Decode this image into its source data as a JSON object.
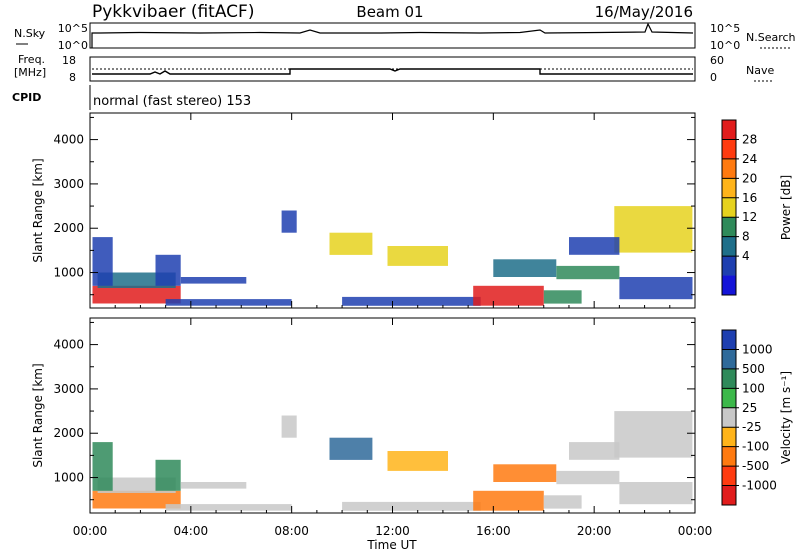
{
  "header": {
    "title": "Pykkvibaer (fitACF)",
    "beam": "Beam 01",
    "date": "16/May/2016"
  },
  "panels": {
    "nsky": {
      "left_label": "N.Sky",
      "top_tick": "10^5",
      "bottom_tick": "10^0",
      "right_label": "N.Search",
      "right_top_tick": "10^5",
      "right_bottom_tick": "10^0"
    },
    "freq": {
      "left_label_1": "Freq.",
      "left_label_2": "[MHz]",
      "top_tick": "18",
      "bottom_tick": "8",
      "right_label": "Nave",
      "right_top_tick": "60",
      "right_bottom_tick": "0"
    },
    "cpid": {
      "label": "CPID",
      "text": "normal (fast stereo) 153"
    }
  },
  "colorbars": {
    "power": {
      "label": "Power [dB]",
      "ticks": [
        "28",
        "24",
        "20",
        "16",
        "12",
        "8",
        "4"
      ],
      "colors": [
        "#e11c1c",
        "#ff3b10",
        "#ff7a10",
        "#ffb41a",
        "#e6d21e",
        "#2f8a5a",
        "#1f6f8a",
        "#1e3fb0",
        "#1414d8"
      ]
    },
    "velocity": {
      "label": "Velocity [m s⁻¹]",
      "ticks": [
        "1000",
        "500",
        "100",
        "25",
        "-25",
        "-100",
        "-500",
        "-1000"
      ],
      "colors": [
        "#1e3fb0",
        "#2f6a9a",
        "#2f8a5a",
        "#3cb84a",
        "#c8c8c8",
        "#ffb41a",
        "#ff7a10",
        "#ff3b10",
        "#e11c1c"
      ]
    }
  },
  "chart_data": [
    {
      "type": "heatmap",
      "title": "",
      "xlabel": "",
      "ylabel": "Slant Range [km]",
      "x_ticks": [
        "00:00",
        "04:00",
        "08:00",
        "12:00",
        "16:00",
        "20:00",
        "00:00"
      ],
      "y_ticks": [
        1000,
        2000,
        3000,
        4000
      ],
      "ylim": [
        200,
        4600
      ],
      "xlim": [
        0,
        24
      ],
      "quantity": "Power [dB]",
      "regions": [
        {
          "t0": 0.1,
          "t1": 3.6,
          "r0": 300,
          "r1": 700,
          "v": 26
        },
        {
          "t0": 0.3,
          "t1": 3.4,
          "r0": 650,
          "r1": 1000,
          "v": 9
        },
        {
          "t0": 2.6,
          "t1": 3.6,
          "r0": 700,
          "r1": 1400,
          "v": 6
        },
        {
          "t0": 0.1,
          "t1": 0.9,
          "r0": 700,
          "r1": 1800,
          "v": 7
        },
        {
          "t0": 3.6,
          "t1": 6.2,
          "r0": 750,
          "r1": 900,
          "v": 5
        },
        {
          "t0": 3.0,
          "t1": 8.0,
          "r0": 250,
          "r1": 400,
          "v": 6
        },
        {
          "t0": 7.6,
          "t1": 8.2,
          "r0": 1900,
          "r1": 2400,
          "v": 6
        },
        {
          "t0": 9.5,
          "t1": 11.2,
          "r0": 1400,
          "r1": 1900,
          "v": 13
        },
        {
          "t0": 11.8,
          "t1": 14.2,
          "r0": 1150,
          "r1": 1600,
          "v": 12
        },
        {
          "t0": 10.0,
          "t1": 15.5,
          "r0": 250,
          "r1": 450,
          "v": 6
        },
        {
          "t0": 15.2,
          "t1": 18.0,
          "r0": 250,
          "r1": 700,
          "v": 28
        },
        {
          "t0": 18.0,
          "t1": 19.5,
          "r0": 300,
          "r1": 600,
          "v": 10
        },
        {
          "t0": 16.0,
          "t1": 18.5,
          "r0": 900,
          "r1": 1300,
          "v": 8
        },
        {
          "t0": 18.5,
          "t1": 21.0,
          "r0": 850,
          "r1": 1150,
          "v": 10
        },
        {
          "t0": 20.8,
          "t1": 23.9,
          "r0": 1450,
          "r1": 2500,
          "v": 12
        },
        {
          "t0": 19.0,
          "t1": 21.0,
          "r0": 1400,
          "r1": 1800,
          "v": 6
        },
        {
          "t0": 21.0,
          "t1": 23.9,
          "r0": 400,
          "r1": 900,
          "v": 7
        }
      ]
    },
    {
      "type": "heatmap",
      "title": "",
      "xlabel": "Time UT",
      "ylabel": "Slant Range [km]",
      "x_ticks": [
        "00:00",
        "04:00",
        "08:00",
        "12:00",
        "16:00",
        "20:00",
        "00:00"
      ],
      "y_ticks": [
        1000,
        2000,
        3000,
        4000
      ],
      "ylim": [
        200,
        4600
      ],
      "xlim": [
        0,
        24
      ],
      "quantity": "Velocity [m s-1]",
      "regions": [
        {
          "t0": 0.1,
          "t1": 3.6,
          "r0": 300,
          "r1": 700,
          "v": -150
        },
        {
          "t0": 0.3,
          "t1": 3.4,
          "r0": 650,
          "r1": 1000,
          "v": 0
        },
        {
          "t0": 2.6,
          "t1": 3.6,
          "r0": 700,
          "r1": 1400,
          "v": 200
        },
        {
          "t0": 0.1,
          "t1": 0.9,
          "r0": 700,
          "r1": 1800,
          "v": 60
        },
        {
          "t0": 3.6,
          "t1": 6.2,
          "r0": 750,
          "r1": 900,
          "v": 0
        },
        {
          "t0": 3.0,
          "t1": 8.0,
          "r0": 250,
          "r1": 400,
          "v": 0
        },
        {
          "t0": 7.6,
          "t1": 8.2,
          "r0": 1900,
          "r1": 2400,
          "v": 0
        },
        {
          "t0": 9.5,
          "t1": 11.2,
          "r0": 1400,
          "r1": 1900,
          "v": 300
        },
        {
          "t0": 11.8,
          "t1": 14.2,
          "r0": 1150,
          "r1": 1600,
          "v": -80
        },
        {
          "t0": 10.0,
          "t1": 15.5,
          "r0": 250,
          "r1": 450,
          "v": 0
        },
        {
          "t0": 15.2,
          "t1": 18.0,
          "r0": 250,
          "r1": 700,
          "v": -250
        },
        {
          "t0": 18.0,
          "t1": 19.5,
          "r0": 300,
          "r1": 600,
          "v": 0
        },
        {
          "t0": 16.0,
          "t1": 18.5,
          "r0": 900,
          "r1": 1300,
          "v": -120
        },
        {
          "t0": 18.5,
          "t1": 21.0,
          "r0": 850,
          "r1": 1150,
          "v": 0
        },
        {
          "t0": 20.8,
          "t1": 23.9,
          "r0": 1450,
          "r1": 2500,
          "v": 0
        },
        {
          "t0": 19.0,
          "t1": 21.0,
          "r0": 1400,
          "r1": 1800,
          "v": 0
        },
        {
          "t0": 21.0,
          "t1": 23.9,
          "r0": 400,
          "r1": 900,
          "v": 0
        }
      ]
    }
  ]
}
